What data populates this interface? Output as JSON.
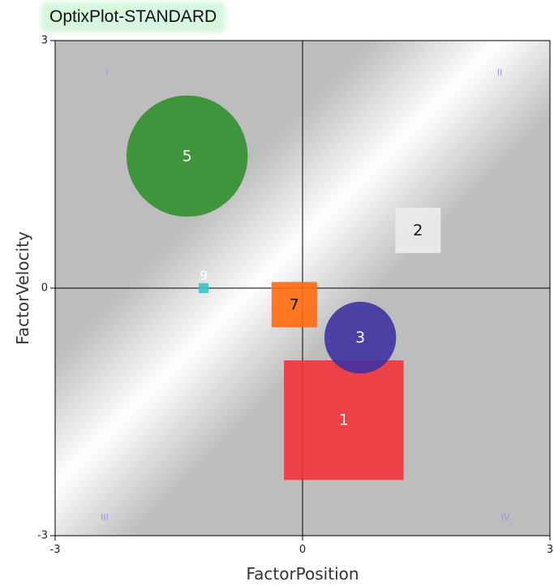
{
  "app": {
    "title": "OptixPlot-STANDARD"
  },
  "chart_data": {
    "type": "scatter",
    "xlabel": "FactorPosition",
    "ylabel": "FactorVelocity",
    "xlim": [
      -3,
      3
    ],
    "ylim": [
      -3,
      3
    ],
    "x_ticks": [
      "-3",
      "0",
      "3"
    ],
    "y_ticks": [
      "3",
      "0",
      "-3"
    ],
    "reference_lines": {
      "x": 0,
      "y": 0
    },
    "quadrant_labels": [
      {
        "label": "I",
        "position": "top-left"
      },
      {
        "label": "II",
        "position": "top-right"
      },
      {
        "label": "III",
        "position": "bottom-left"
      },
      {
        "label": "IV",
        "position": "bottom-right"
      }
    ],
    "points": [
      {
        "label": "1",
        "shape": "square",
        "x": 0.5,
        "y": -1.6,
        "size": 1.45,
        "color": "#f2333a",
        "label_color": "#ffffff"
      },
      {
        "label": "2",
        "shape": "square",
        "x": 1.4,
        "y": 0.7,
        "size": 0.55,
        "color": "#ececec",
        "label_color": "#111111"
      },
      {
        "label": "3",
        "shape": "circle",
        "x": 0.7,
        "y": -0.6,
        "size": 0.87,
        "color": "#3b2fa0",
        "label_color": "#ffffff"
      },
      {
        "label": "5",
        "shape": "circle",
        "x": -1.4,
        "y": 1.6,
        "size": 1.47,
        "color": "#2d8f2a",
        "label_color": "#ffffff"
      },
      {
        "label": "7",
        "shape": "square",
        "x": -0.1,
        "y": -0.2,
        "size": 0.55,
        "color": "#ff6a10",
        "label_color": "#111111"
      },
      {
        "label": "9",
        "shape": "square",
        "x": -1.2,
        "y": 0,
        "size": 0.12,
        "color": "#38c3c8",
        "label_color": "#ffffff"
      }
    ],
    "colors": {
      "plot_background_light": "#ffffff",
      "plot_background_dark": "#bdbdbd",
      "axis": "#000000",
      "quadrant_label": "#8f96ee"
    }
  }
}
